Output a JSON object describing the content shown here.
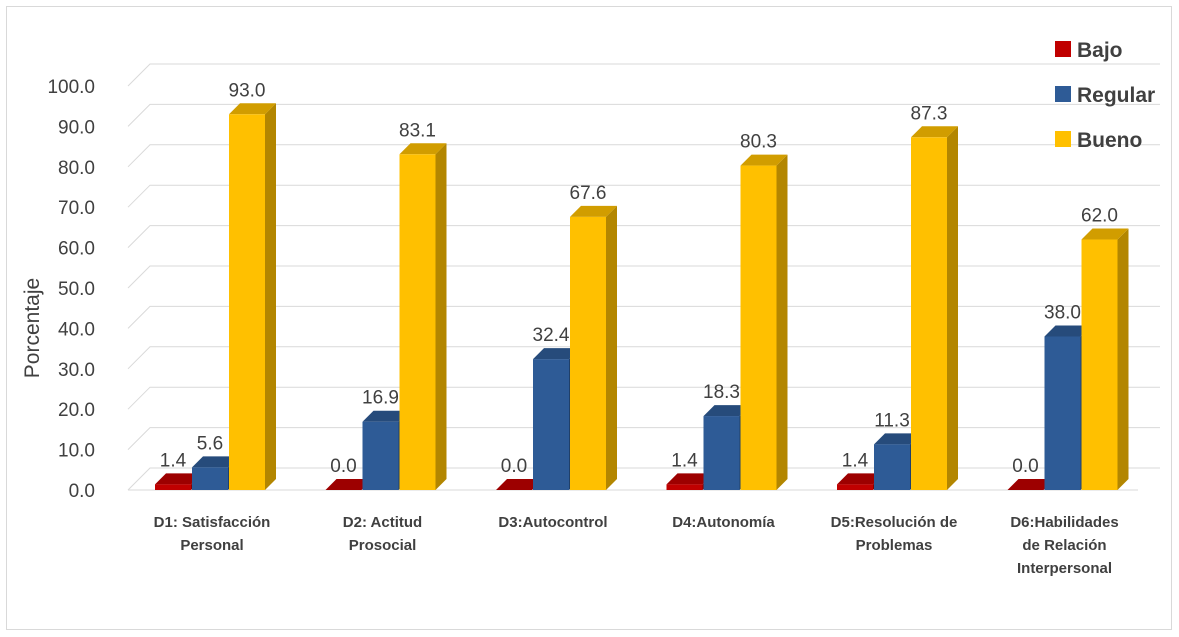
{
  "chart_data": {
    "type": "bar",
    "title": "",
    "xlabel": "",
    "ylabel": "Porcentaje",
    "ylim": [
      0,
      100
    ],
    "yticks": [
      "0.0",
      "10.0",
      "20.0",
      "30.0",
      "40.0",
      "50.0",
      "60.0",
      "70.0",
      "80.0",
      "90.0",
      "100.0"
    ],
    "grid": true,
    "legend_position": "top-right",
    "categories": [
      [
        "D1: Satisfacción",
        "Personal"
      ],
      [
        "D2: Actitud",
        "Prosocial"
      ],
      [
        "D3:Autocontrol"
      ],
      [
        "D4:Autonomía"
      ],
      [
        "D5:Resolución de",
        "Problemas"
      ],
      [
        "D6:Habilidades",
        "de Relación",
        "Interpersonal"
      ]
    ],
    "series": [
      {
        "name": "Bajo",
        "color": "#c00000",
        "values": [
          1.4,
          0.0,
          0.0,
          1.4,
          1.4,
          0.0
        ],
        "labels": [
          "1.4",
          "0.0",
          "0.0",
          "1.4",
          "1.4",
          "0.0"
        ]
      },
      {
        "name": "Regular",
        "color": "#2e5b96",
        "values": [
          5.6,
          16.9,
          32.4,
          18.3,
          11.3,
          38.0
        ],
        "labels": [
          "5.6",
          "16.9",
          "32.4",
          "18.3",
          "11.3",
          "38.0"
        ]
      },
      {
        "name": "Bueno",
        "color": "#ffc000",
        "values": [
          93.0,
          83.1,
          67.6,
          80.3,
          87.3,
          62.0
        ],
        "labels": [
          "93.0",
          "83.1",
          "67.6",
          "80.3",
          "87.3",
          "62.0"
        ]
      }
    ]
  }
}
